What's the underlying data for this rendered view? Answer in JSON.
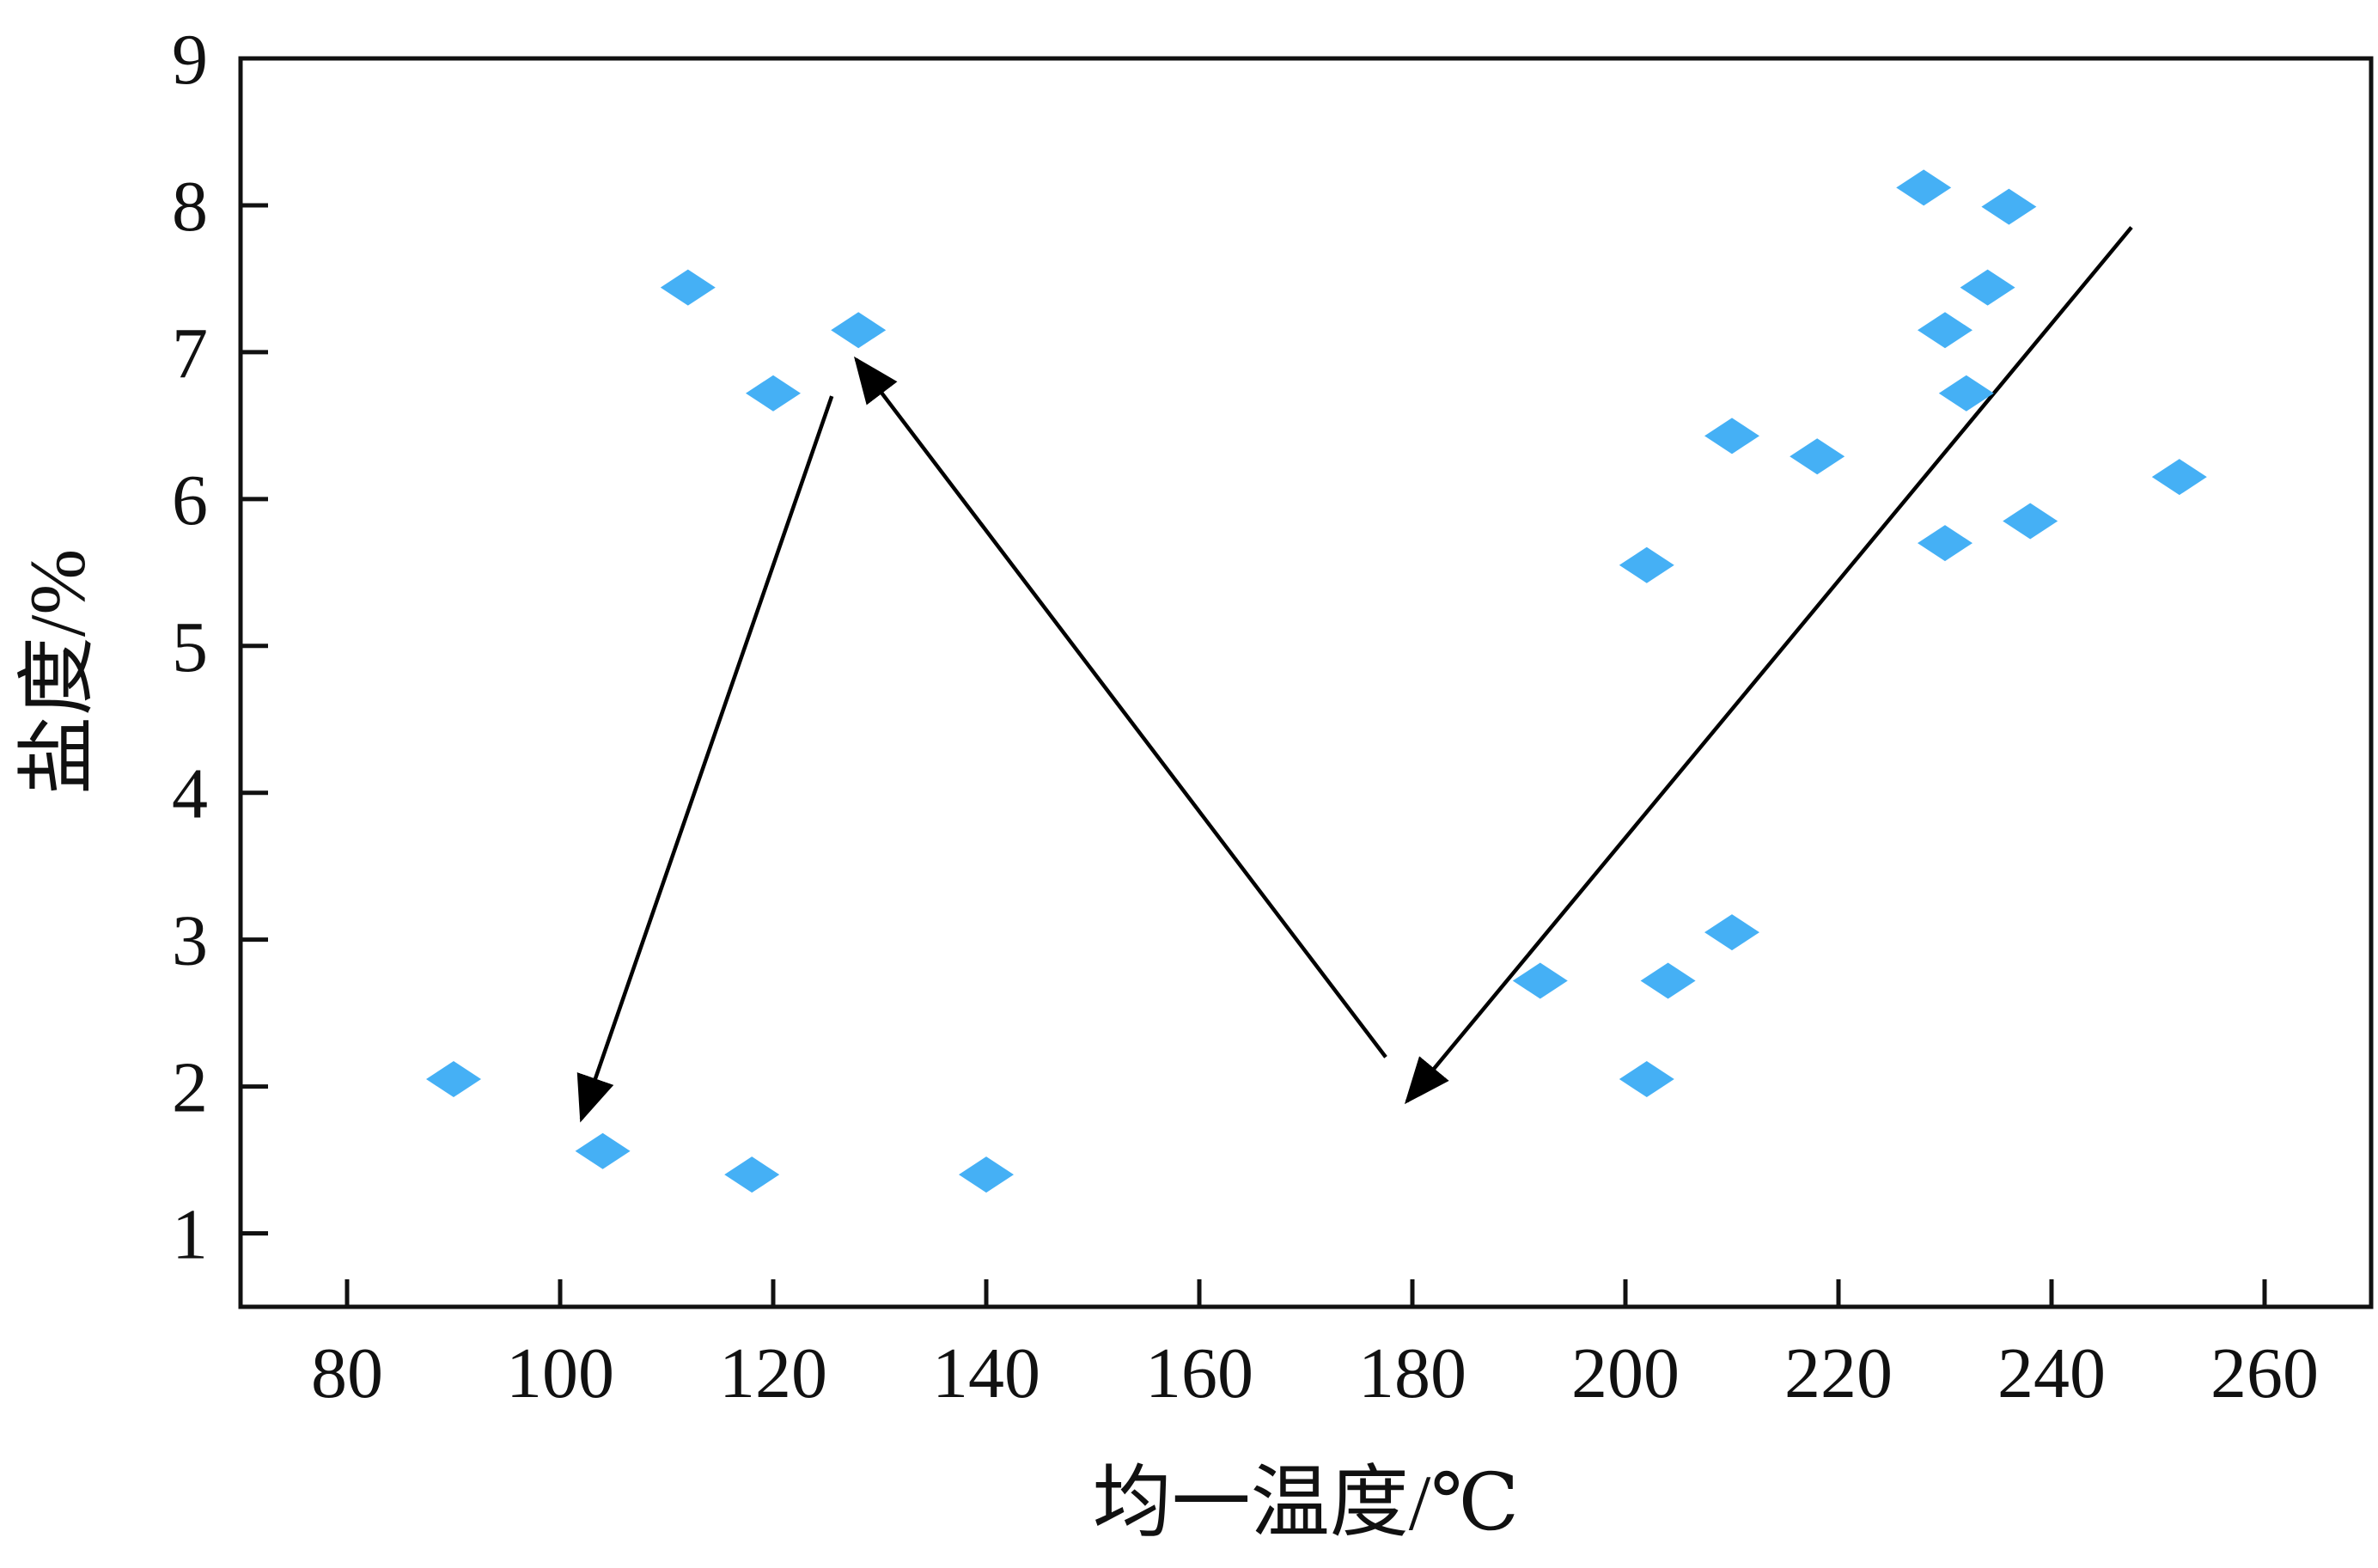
{
  "chart_data": {
    "type": "scatter",
    "xlabel": "均一温度/℃",
    "ylabel": "盐度/%",
    "xlim": [
      70,
      270
    ],
    "ylim": [
      0.5,
      9
    ],
    "x_ticks": [
      80,
      100,
      120,
      140,
      160,
      180,
      200,
      220,
      240,
      260
    ],
    "y_ticks": [
      1,
      2,
      3,
      4,
      5,
      6,
      7,
      8,
      9
    ],
    "grid": false,
    "legend": "none",
    "marker": "diamond",
    "marker_color": "#45B0F5",
    "series": [
      {
        "points": [
          {
            "x": 90,
            "y": 2.05
          },
          {
            "x": 104,
            "y": 1.56
          },
          {
            "x": 118,
            "y": 1.4
          },
          {
            "x": 140,
            "y": 1.4
          },
          {
            "x": 112,
            "y": 7.44
          },
          {
            "x": 120,
            "y": 6.72
          },
          {
            "x": 128,
            "y": 7.15
          },
          {
            "x": 192,
            "y": 2.72
          },
          {
            "x": 202,
            "y": 2.05
          },
          {
            "x": 204,
            "y": 2.72
          },
          {
            "x": 210,
            "y": 3.05
          },
          {
            "x": 202,
            "y": 5.55
          },
          {
            "x": 210,
            "y": 6.43
          },
          {
            "x": 218,
            "y": 6.29
          },
          {
            "x": 228,
            "y": 8.12
          },
          {
            "x": 236,
            "y": 7.99
          },
          {
            "x": 234,
            "y": 7.44
          },
          {
            "x": 230,
            "y": 7.15
          },
          {
            "x": 232,
            "y": 6.72
          },
          {
            "x": 230,
            "y": 5.7
          },
          {
            "x": 238,
            "y": 5.85
          },
          {
            "x": 252,
            "y": 6.15
          }
        ]
      }
    ],
    "annotations": [
      {
        "type": "arrow",
        "from": {
          "x": 247.5,
          "y": 7.85
        },
        "to": {
          "x": 179.5,
          "y": 1.9
        }
      },
      {
        "type": "arrow",
        "from": {
          "x": 177.5,
          "y": 2.2
        },
        "to": {
          "x": 127.8,
          "y": 6.95
        }
      },
      {
        "type": "arrow",
        "from": {
          "x": 125.5,
          "y": 6.7
        },
        "to": {
          "x": 102,
          "y": 1.78
        }
      }
    ]
  }
}
